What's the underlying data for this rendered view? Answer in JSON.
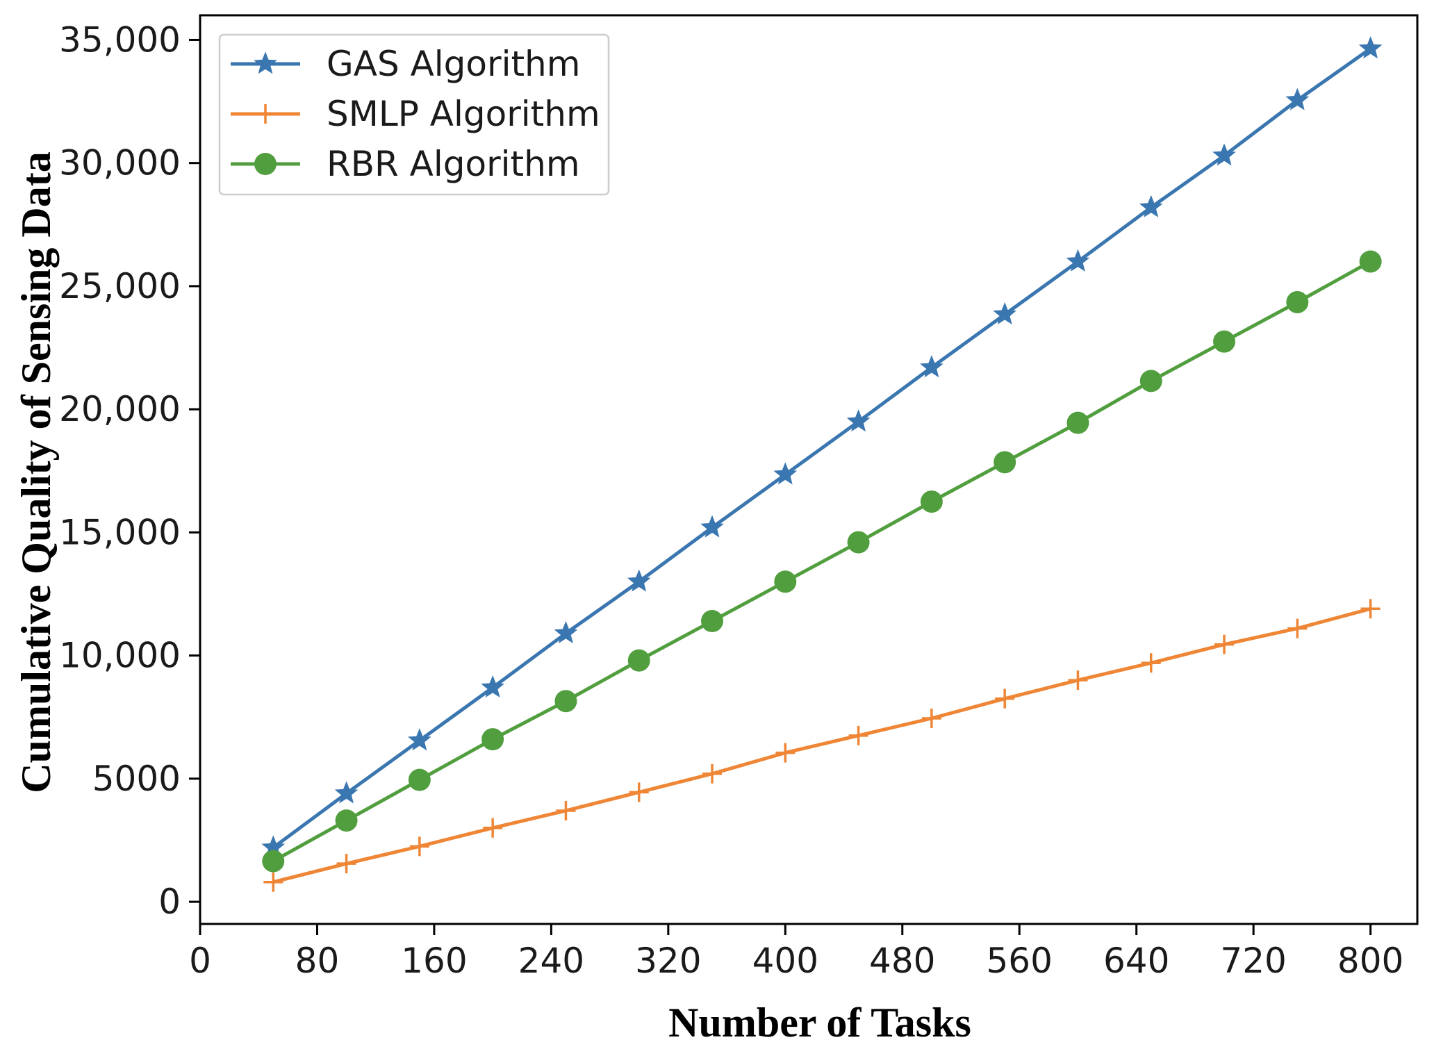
{
  "chart_data": {
    "type": "line",
    "title": "",
    "xlabel": "Number of Tasks",
    "ylabel": "Cumulative Quality of Sensing Data",
    "xlim": [
      0,
      832
    ],
    "ylim": [
      -900,
      36000
    ],
    "x_ticks": [
      0,
      80,
      160,
      240,
      320,
      400,
      480,
      560,
      640,
      720,
      800
    ],
    "x_tick_labels": [
      "0",
      "80",
      "160",
      "240",
      "320",
      "400",
      "480",
      "560",
      "640",
      "720",
      "800"
    ],
    "y_ticks": [
      0,
      5000,
      10000,
      15000,
      20000,
      25000,
      30000,
      35000
    ],
    "y_tick_labels": [
      "0",
      "5000",
      "10,000",
      "15,000",
      "20,000",
      "25,000",
      "30,000",
      "35,000"
    ],
    "legend_position": "top-left",
    "grid": false,
    "x": [
      50,
      100,
      150,
      200,
      250,
      300,
      350,
      400,
      450,
      500,
      550,
      600,
      650,
      700,
      750,
      800
    ],
    "series": [
      {
        "name": "GAS Algorithm",
        "color": "#3a76af",
        "marker": "star",
        "values": [
          2200,
          4400,
          6550,
          8700,
          10900,
          13000,
          15200,
          17350,
          19500,
          21700,
          23850,
          26000,
          28200,
          30300,
          32550,
          34650
        ]
      },
      {
        "name": "SMLP Algorithm",
        "color": "#ef8636",
        "marker": "plus",
        "values": [
          800,
          1550,
          2250,
          3000,
          3700,
          4450,
          5200,
          6050,
          6750,
          7450,
          8250,
          9000,
          9700,
          10450,
          11100,
          11900
        ]
      },
      {
        "name": "RBR Algorithm",
        "color": "#519e3e",
        "marker": "circle",
        "values": [
          1650,
          3300,
          4950,
          6600,
          8150,
          9800,
          11400,
          13000,
          14600,
          16250,
          17850,
          19450,
          21150,
          22750,
          24350,
          26000
        ]
      }
    ]
  }
}
